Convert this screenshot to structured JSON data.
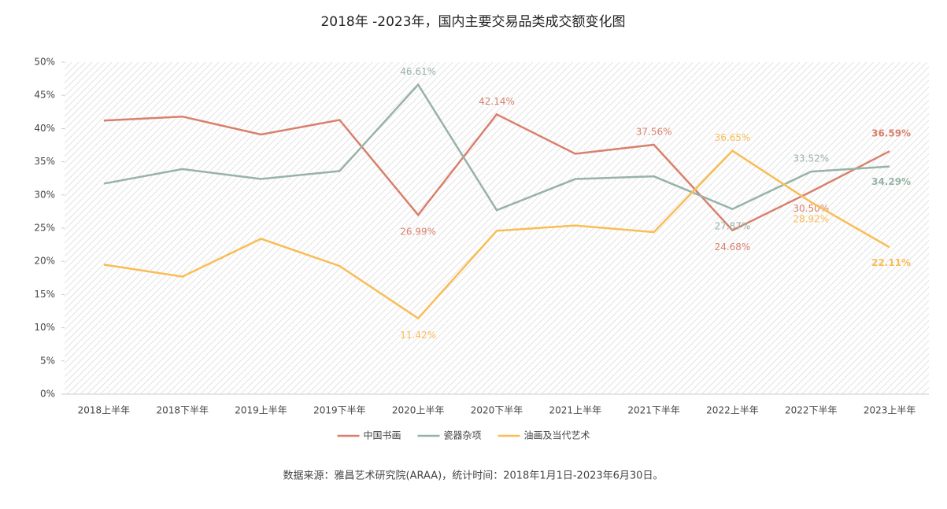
{
  "chart_data": {
    "type": "line",
    "title": "2018年 -2023年，国内主要交易品类成交额变化图",
    "note": "数据来源：雅昌艺术研究院(ARAA)，统计时间：2018年1月1日-2023年6月30日。",
    "categories": [
      "2018上半年",
      "2018下半年",
      "2019上半年",
      "2019下半年",
      "2020上半年",
      "2020下半年",
      "2021上半年",
      "2021下半年",
      "2022上半年",
      "2022下半年",
      "2023上半年"
    ],
    "ylim": [
      0,
      50
    ],
    "yticks": [
      {
        "value": 0,
        "label": "0%"
      },
      {
        "value": 5,
        "label": "5%"
      },
      {
        "value": 10,
        "label": "10%"
      },
      {
        "value": 15,
        "label": "15%"
      },
      {
        "value": 20,
        "label": "20%"
      },
      {
        "value": 25,
        "label": "25%"
      },
      {
        "value": 30,
        "label": "30%"
      },
      {
        "value": 35,
        "label": "35%"
      },
      {
        "value": 40,
        "label": "40%"
      },
      {
        "value": 45,
        "label": "45%"
      },
      {
        "value": 50,
        "label": "50%"
      }
    ],
    "series": [
      {
        "name": "中国书画",
        "color": "#d9806d",
        "values": [
          41.2,
          41.8,
          39.1,
          41.3,
          26.99,
          42.14,
          36.2,
          37.56,
          24.68,
          30.5,
          36.59
        ],
        "value_labels": [
          null,
          null,
          null,
          null,
          "26.99%",
          "42.14%",
          null,
          "37.56%",
          "24.68%",
          "30.50%",
          "36.59%"
        ]
      },
      {
        "name": "瓷器杂项",
        "color": "#98b3a6",
        "values": [
          31.7,
          33.9,
          32.4,
          33.6,
          46.61,
          27.7,
          32.4,
          32.8,
          27.87,
          33.52,
          34.29
        ],
        "value_labels": [
          null,
          null,
          null,
          null,
          "46.61%",
          null,
          null,
          null,
          "27.87%",
          "33.52%",
          "34.29%"
        ]
      },
      {
        "name": "油画及当代艺术",
        "color": "#f9bd55",
        "values": [
          19.5,
          17.7,
          23.4,
          19.3,
          11.42,
          24.6,
          25.4,
          24.4,
          36.65,
          28.92,
          22.11
        ],
        "value_labels": [
          null,
          null,
          null,
          null,
          "11.42%",
          null,
          null,
          null,
          "36.65%",
          "28.92%",
          "22.11%"
        ]
      }
    ]
  }
}
